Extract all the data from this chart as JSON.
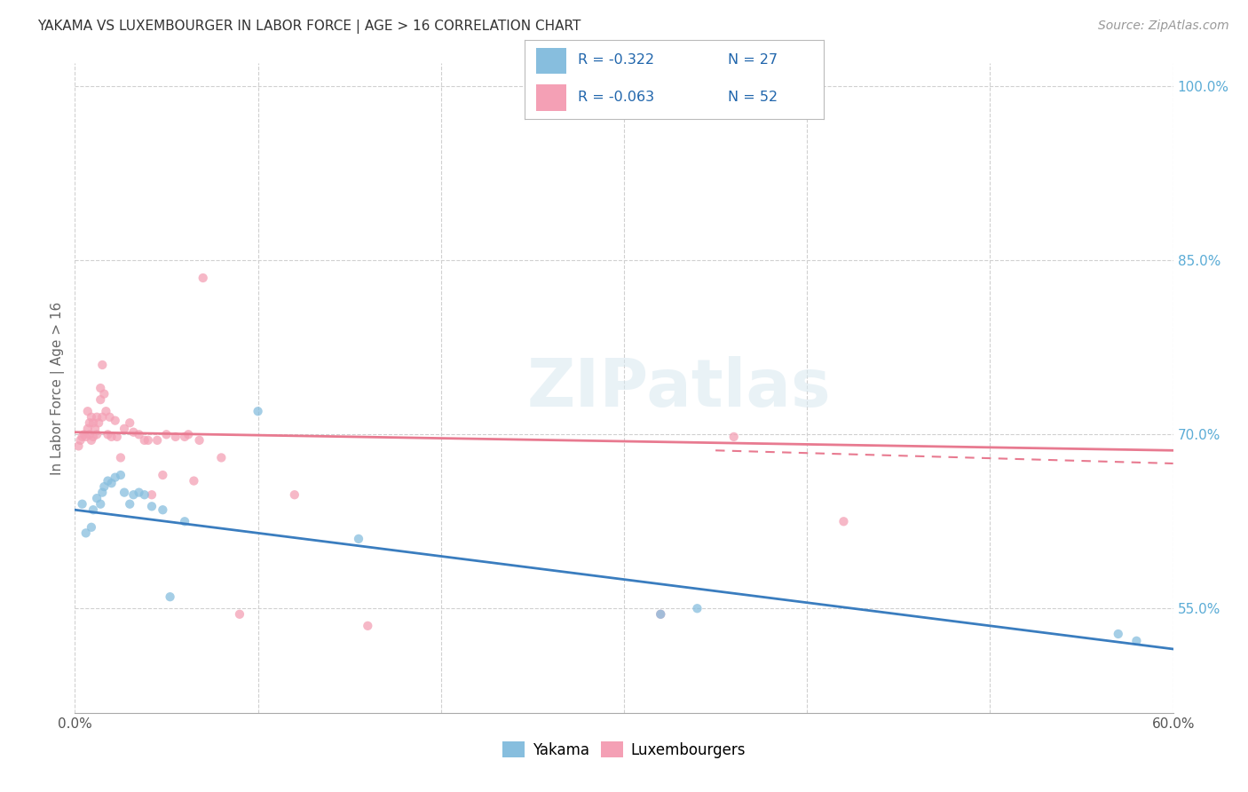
{
  "title": "YAKAMA VS LUXEMBOURGER IN LABOR FORCE | AGE > 16 CORRELATION CHART",
  "source": "Source: ZipAtlas.com",
  "ylabel_label": "In Labor Force | Age > 16",
  "watermark_text": "ZIPatlas",
  "x_min": 0.0,
  "x_max": 0.6,
  "y_min": 0.46,
  "y_max": 1.02,
  "x_ticks": [
    0.0,
    0.1,
    0.2,
    0.3,
    0.4,
    0.5,
    0.6
  ],
  "x_tick_labels": [
    "0.0%",
    "",
    "",
    "",
    "",
    "",
    "60.0%"
  ],
  "y_ticks": [
    0.55,
    0.7,
    0.85,
    1.0
  ],
  "y_tick_labels": [
    "55.0%",
    "70.0%",
    "85.0%",
    "100.0%"
  ],
  "legend_r_yakama": "R = -0.322",
  "legend_n_yakama": "N = 27",
  "legend_r_lux": "R = -0.063",
  "legend_n_lux": "N = 52",
  "yakama_color": "#87bede",
  "luxembourger_color": "#f4a0b5",
  "yakama_line_color": "#3a7dbf",
  "luxembourger_line_color": "#e87a90",
  "grid_color": "#d0d0d0",
  "title_color": "#333333",
  "axis_label_color": "#666666",
  "right_tick_color": "#5bacd6",
  "scatter_alpha": 0.75,
  "scatter_size": 55,
  "yakama_x": [
    0.004,
    0.006,
    0.009,
    0.01,
    0.012,
    0.014,
    0.015,
    0.016,
    0.018,
    0.02,
    0.022,
    0.025,
    0.027,
    0.03,
    0.032,
    0.035,
    0.038,
    0.042,
    0.048,
    0.052,
    0.06,
    0.1,
    0.155,
    0.32,
    0.34,
    0.57,
    0.58
  ],
  "yakama_y": [
    0.64,
    0.615,
    0.62,
    0.635,
    0.645,
    0.64,
    0.65,
    0.655,
    0.66,
    0.658,
    0.663,
    0.665,
    0.65,
    0.64,
    0.648,
    0.65,
    0.648,
    0.638,
    0.635,
    0.56,
    0.625,
    0.72,
    0.61,
    0.545,
    0.55,
    0.528,
    0.522
  ],
  "luxembourger_x": [
    0.002,
    0.003,
    0.004,
    0.005,
    0.006,
    0.007,
    0.007,
    0.008,
    0.008,
    0.009,
    0.009,
    0.01,
    0.01,
    0.011,
    0.012,
    0.012,
    0.013,
    0.014,
    0.014,
    0.015,
    0.015,
    0.016,
    0.017,
    0.018,
    0.019,
    0.02,
    0.022,
    0.023,
    0.025,
    0.027,
    0.03,
    0.032,
    0.035,
    0.038,
    0.04,
    0.042,
    0.045,
    0.048,
    0.05,
    0.055,
    0.06,
    0.062,
    0.065,
    0.068,
    0.07,
    0.08,
    0.09,
    0.12,
    0.16,
    0.32,
    0.36,
    0.42
  ],
  "luxembourger_y": [
    0.69,
    0.695,
    0.698,
    0.7,
    0.698,
    0.705,
    0.72,
    0.7,
    0.71,
    0.695,
    0.715,
    0.698,
    0.71,
    0.705,
    0.7,
    0.715,
    0.71,
    0.73,
    0.74,
    0.76,
    0.715,
    0.735,
    0.72,
    0.7,
    0.715,
    0.698,
    0.712,
    0.698,
    0.68,
    0.705,
    0.71,
    0.702,
    0.7,
    0.695,
    0.695,
    0.648,
    0.695,
    0.665,
    0.7,
    0.698,
    0.698,
    0.7,
    0.66,
    0.695,
    0.835,
    0.68,
    0.545,
    0.648,
    0.535,
    0.545,
    0.698,
    0.625
  ],
  "yakama_trend_x": [
    0.0,
    0.6
  ],
  "yakama_trend_y": [
    0.635,
    0.515
  ],
  "lux_trend_x": [
    0.0,
    0.6
  ],
  "lux_trend_y": [
    0.702,
    0.675
  ]
}
